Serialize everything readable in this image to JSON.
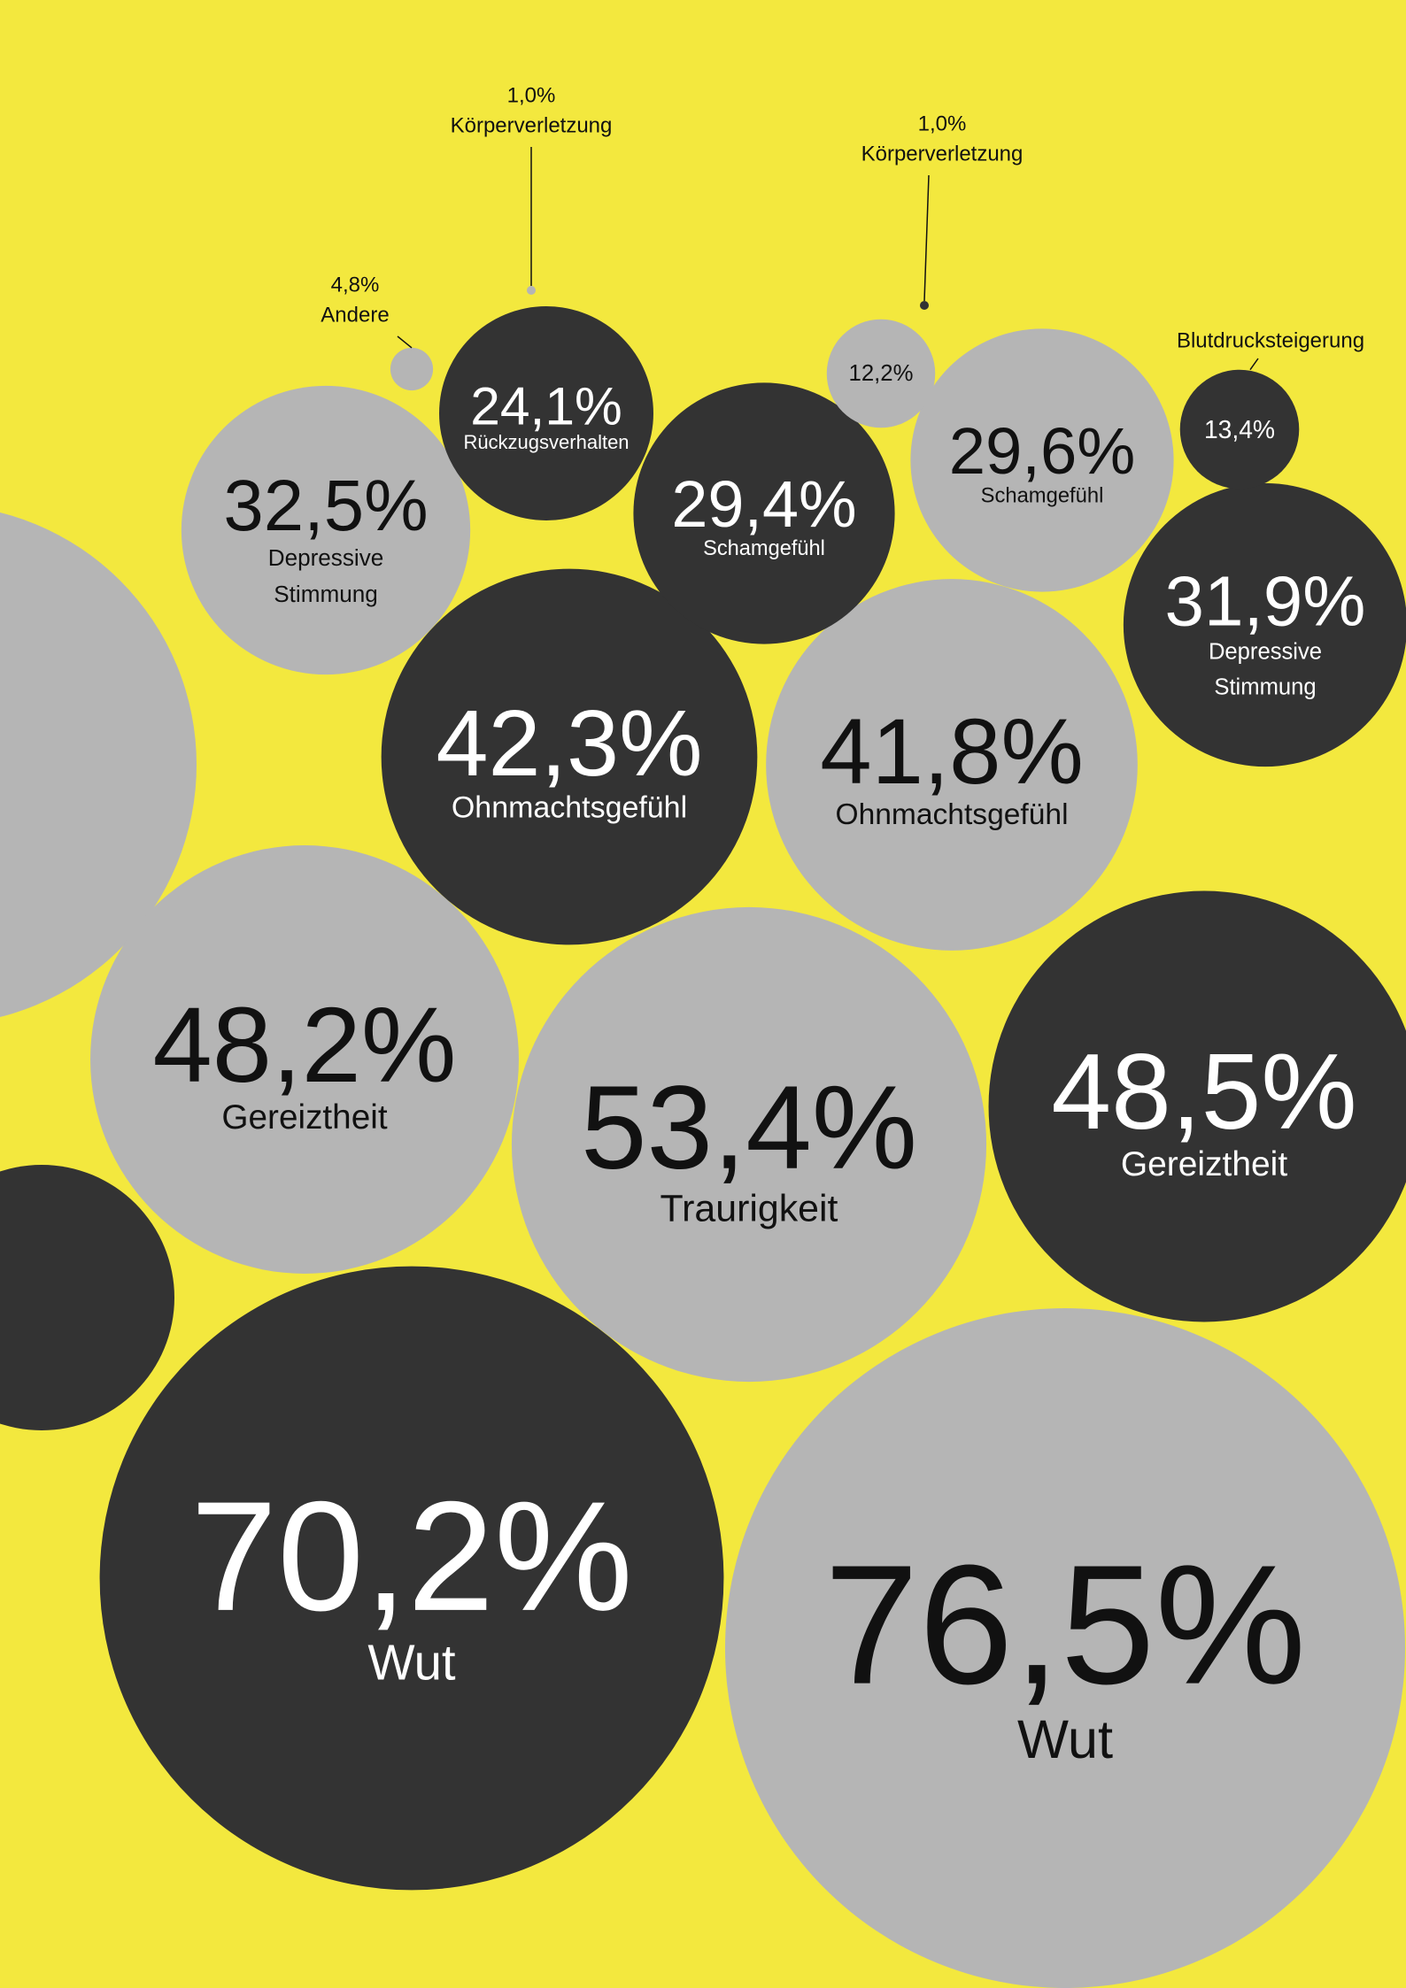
{
  "chart_data": {
    "type": "bubble",
    "values": [
      76.5,
      70.2,
      53.4,
      48.5,
      48.2,
      42.3,
      41.8,
      32.5,
      31.9,
      29.4,
      29.6,
      24.1,
      13.4,
      12.2,
      4.8,
      1.0,
      1.0
    ],
    "value_labels": [
      "76,5%",
      "70,2%",
      "53,4%",
      "48,5%",
      "48,2%",
      "42,3%",
      "41,8%",
      "32,5%",
      "31,9%",
      "29,4%",
      "29,6%",
      "24,1%",
      "13,4%",
      "12,2%",
      "4,8%",
      "1,0%",
      "1,0%"
    ],
    "labels": [
      "Wut",
      "Wut",
      "Traurigkeit",
      "Gereiztheit",
      "Gereiztheit",
      "Ohnmachtsgefühl",
      "Ohnmachtsgefühl",
      "Depressive Stimmung",
      "Depressive Stimmung",
      "Schamgefühl",
      "Schamgefühl",
      "Rückzugsverhalten",
      "Blutdrucksteigerung",
      null,
      "Andere",
      "Körperverletzung",
      "Körperverletzung"
    ],
    "colors": [
      "#b5b5b5",
      "#333333",
      "#b5b5b5",
      "#333333",
      "#b5b5b5",
      "#333333",
      "#b5b5b5",
      "#b5b5b5",
      "#333333",
      "#333333",
      "#b5b5b5",
      "#333333",
      "#333333",
      "#b5b5b5",
      "#b5b5b5",
      "#b5b5b5",
      "#333333"
    ]
  }
}
